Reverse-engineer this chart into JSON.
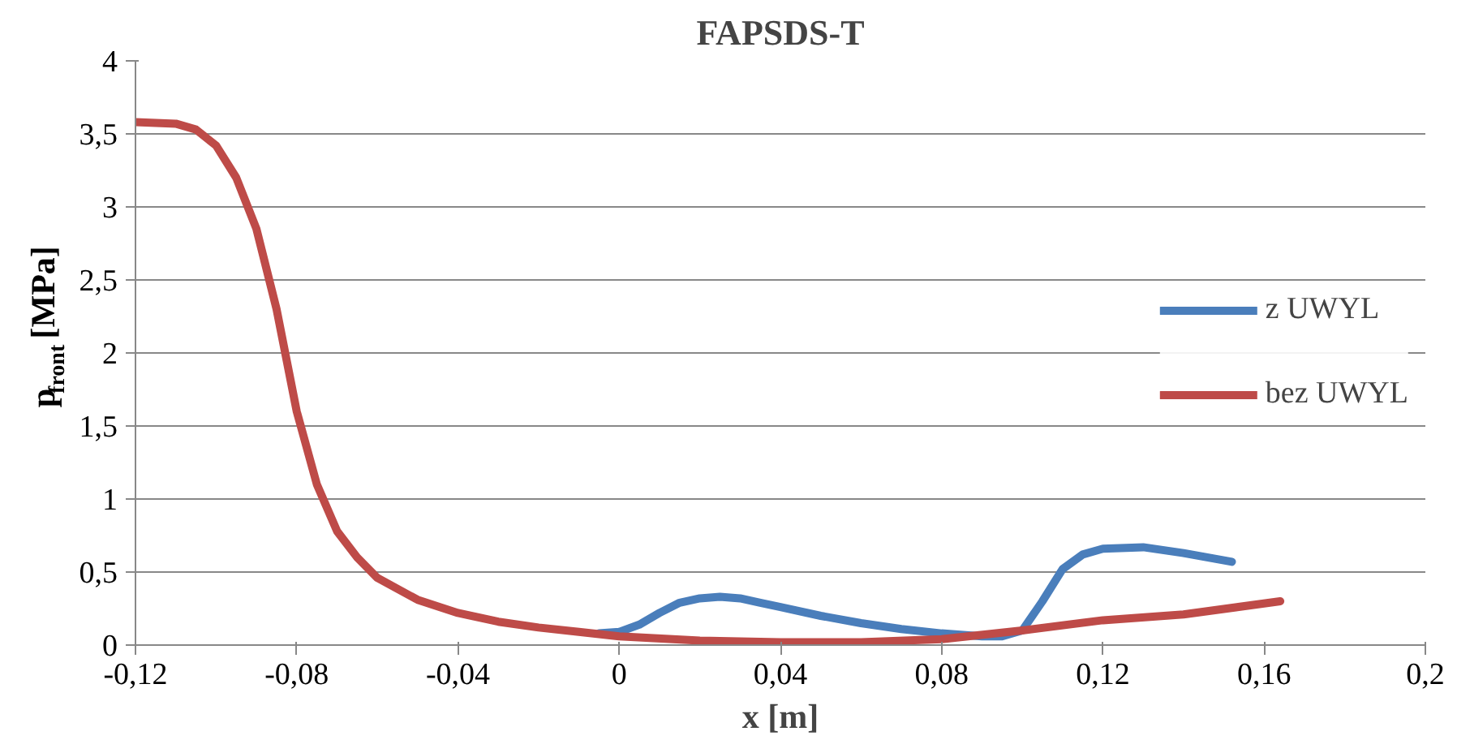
{
  "chart_data": {
    "type": "line",
    "title": "FAPSDS-T",
    "xlabel": "x [m]",
    "ylabel": "p$_{front}$ [MPa]",
    "series": [
      {
        "name": "z UWYL",
        "color": "#4a7ebb",
        "x": [
          -0.005,
          0,
          0.005,
          0.01,
          0.015,
          0.02,
          0.025,
          0.03,
          0.035,
          0.04,
          0.05,
          0.06,
          0.07,
          0.08,
          0.09,
          0.095,
          0.1,
          0.105,
          0.11,
          0.115,
          0.12,
          0.13,
          0.14,
          0.152
        ],
        "values": [
          0.08,
          0.09,
          0.14,
          0.22,
          0.29,
          0.32,
          0.33,
          0.32,
          0.29,
          0.26,
          0.2,
          0.15,
          0.11,
          0.08,
          0.06,
          0.06,
          0.1,
          0.3,
          0.52,
          0.62,
          0.66,
          0.67,
          0.63,
          0.57
        ]
      },
      {
        "name": "bez UWYL",
        "color": "#be4b48",
        "x": [
          -0.12,
          -0.11,
          -0.105,
          -0.1,
          -0.095,
          -0.09,
          -0.085,
          -0.08,
          -0.075,
          -0.07,
          -0.065,
          -0.06,
          -0.05,
          -0.04,
          -0.03,
          -0.02,
          -0.01,
          0,
          0.02,
          0.04,
          0.06,
          0.08,
          0.1,
          0.12,
          0.14,
          0.164
        ],
        "values": [
          3.58,
          3.57,
          3.53,
          3.42,
          3.2,
          2.85,
          2.3,
          1.6,
          1.1,
          0.78,
          0.6,
          0.46,
          0.31,
          0.22,
          0.16,
          0.12,
          0.09,
          0.06,
          0.03,
          0.02,
          0.02,
          0.04,
          0.1,
          0.17,
          0.21,
          0.3
        ]
      }
    ],
    "xlim": [
      -0.12,
      0.2
    ],
    "ylim": [
      0,
      4
    ],
    "xticks": [
      {
        "value": -0.12,
        "label": "-0,12"
      },
      {
        "value": -0.08,
        "label": "-0,08"
      },
      {
        "value": -0.04,
        "label": "-0,04"
      },
      0,
      {
        "value": 0.04,
        "label": "0,04"
      },
      {
        "value": 0.08,
        "label": "0,08"
      },
      {
        "value": 0.12,
        "label": "0,12"
      },
      {
        "value": 0.16,
        "label": "0,16"
      },
      {
        "value": 0.2,
        "label": "0,2"
      }
    ],
    "yticks": [
      0,
      {
        "value": 0.5,
        "label": "0,5"
      },
      1,
      {
        "value": 1.5,
        "label": "1,5"
      },
      2,
      {
        "value": 2.5,
        "label": "2,5"
      },
      3,
      {
        "value": 3.5,
        "label": "3,5"
      },
      4
    ],
    "grid": "y",
    "legend": "right",
    "marker": "none",
    "line_style": "solid"
  }
}
